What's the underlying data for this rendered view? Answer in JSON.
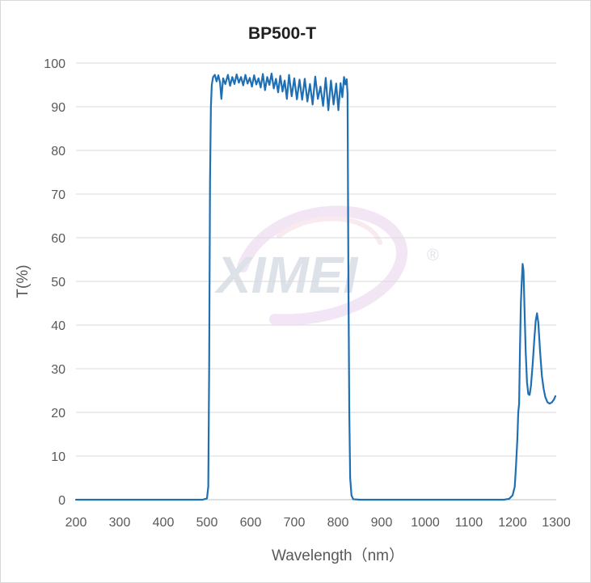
{
  "chart_data": {
    "type": "line",
    "title": "BP500-T",
    "xlabel": "Wavelength（nm）",
    "ylabel": "T(%)",
    "xlim": [
      200,
      1300
    ],
    "ylim": [
      0,
      100
    ],
    "x_ticks": [
      200,
      300,
      400,
      500,
      600,
      700,
      800,
      900,
      1000,
      1100,
      1200,
      1300
    ],
    "y_ticks": [
      0,
      10,
      20,
      30,
      40,
      50,
      60,
      70,
      80,
      90,
      100
    ],
    "grid": "horizontal",
    "legend": "none",
    "series": [
      {
        "color": "#1f6fb5",
        "points": [
          [
            200,
            0
          ],
          [
            300,
            0
          ],
          [
            400,
            0
          ],
          [
            490,
            0
          ],
          [
            500,
            0.3
          ],
          [
            503,
            3
          ],
          [
            505,
            30
          ],
          [
            507,
            73
          ],
          [
            509,
            90
          ],
          [
            511,
            95
          ],
          [
            514,
            96.8
          ],
          [
            518,
            97.3
          ],
          [
            522,
            95.8
          ],
          [
            526,
            97.2
          ],
          [
            530,
            95.5
          ],
          [
            533,
            91.8
          ],
          [
            537,
            96.5
          ],
          [
            542,
            95.2
          ],
          [
            548,
            97.3
          ],
          [
            553,
            94.8
          ],
          [
            558,
            96.8
          ],
          [
            563,
            95.2
          ],
          [
            568,
            97.4
          ],
          [
            573,
            95.5
          ],
          [
            578,
            96.8
          ],
          [
            583,
            94.9
          ],
          [
            588,
            97.3
          ],
          [
            593,
            95.3
          ],
          [
            598,
            96.6
          ],
          [
            603,
            94.6
          ],
          [
            608,
            97.2
          ],
          [
            613,
            95.1
          ],
          [
            618,
            96.5
          ],
          [
            623,
            94.4
          ],
          [
            628,
            97.5
          ],
          [
            633,
            93.8
          ],
          [
            638,
            96.8
          ],
          [
            643,
            95.0
          ],
          [
            648,
            97.6
          ],
          [
            653,
            94.2
          ],
          [
            658,
            96.4
          ],
          [
            663,
            93.3
          ],
          [
            668,
            97.1
          ],
          [
            673,
            93.5
          ],
          [
            678,
            96.0
          ],
          [
            683,
            91.8
          ],
          [
            688,
            97.3
          ],
          [
            694,
            92.4
          ],
          [
            700,
            96.5
          ],
          [
            706,
            91.7
          ],
          [
            712,
            96.2
          ],
          [
            718,
            91.6
          ],
          [
            724,
            96.4
          ],
          [
            730,
            91.2
          ],
          [
            736,
            95.2
          ],
          [
            742,
            90.5
          ],
          [
            748,
            96.9
          ],
          [
            754,
            91.8
          ],
          [
            760,
            94.6
          ],
          [
            766,
            90.2
          ],
          [
            772,
            96.6
          ],
          [
            778,
            89.2
          ],
          [
            784,
            96.0
          ],
          [
            790,
            90.5
          ],
          [
            796,
            95.3
          ],
          [
            801,
            89.2
          ],
          [
            806,
            95.4
          ],
          [
            810,
            92.2
          ],
          [
            814,
            96.8
          ],
          [
            817,
            95.1
          ],
          [
            820,
            96.3
          ],
          [
            822,
            93.0
          ],
          [
            824,
            50
          ],
          [
            826,
            20
          ],
          [
            828,
            5
          ],
          [
            831,
            1
          ],
          [
            835,
            0.1
          ],
          [
            850,
            0
          ],
          [
            900,
            0
          ],
          [
            1000,
            0
          ],
          [
            1100,
            0
          ],
          [
            1180,
            0
          ],
          [
            1192,
            0.2
          ],
          [
            1200,
            1
          ],
          [
            1205,
            3
          ],
          [
            1208,
            8
          ],
          [
            1211,
            14
          ],
          [
            1213,
            20
          ],
          [
            1215,
            22
          ],
          [
            1217,
            35
          ],
          [
            1219,
            45
          ],
          [
            1221,
            50
          ],
          [
            1223,
            54
          ],
          [
            1225,
            52.5
          ],
          [
            1227,
            45
          ],
          [
            1230,
            34
          ],
          [
            1233,
            27
          ],
          [
            1236,
            24.2
          ],
          [
            1239,
            24
          ],
          [
            1242,
            26
          ],
          [
            1246,
            31
          ],
          [
            1250,
            37
          ],
          [
            1253,
            41
          ],
          [
            1256,
            42.7
          ],
          [
            1259,
            40.5
          ],
          [
            1263,
            34
          ],
          [
            1267,
            28.5
          ],
          [
            1271,
            25.5
          ],
          [
            1275,
            23.5
          ],
          [
            1280,
            22.3
          ],
          [
            1285,
            22
          ],
          [
            1290,
            22.3
          ],
          [
            1295,
            23
          ],
          [
            1298,
            23.7
          ]
        ]
      }
    ]
  },
  "watermark": {
    "text": "XIMEI",
    "registered_mark": "®",
    "colors": [
      "#c7cdd8",
      "#dcd4f0",
      "#f2d6e0"
    ]
  }
}
